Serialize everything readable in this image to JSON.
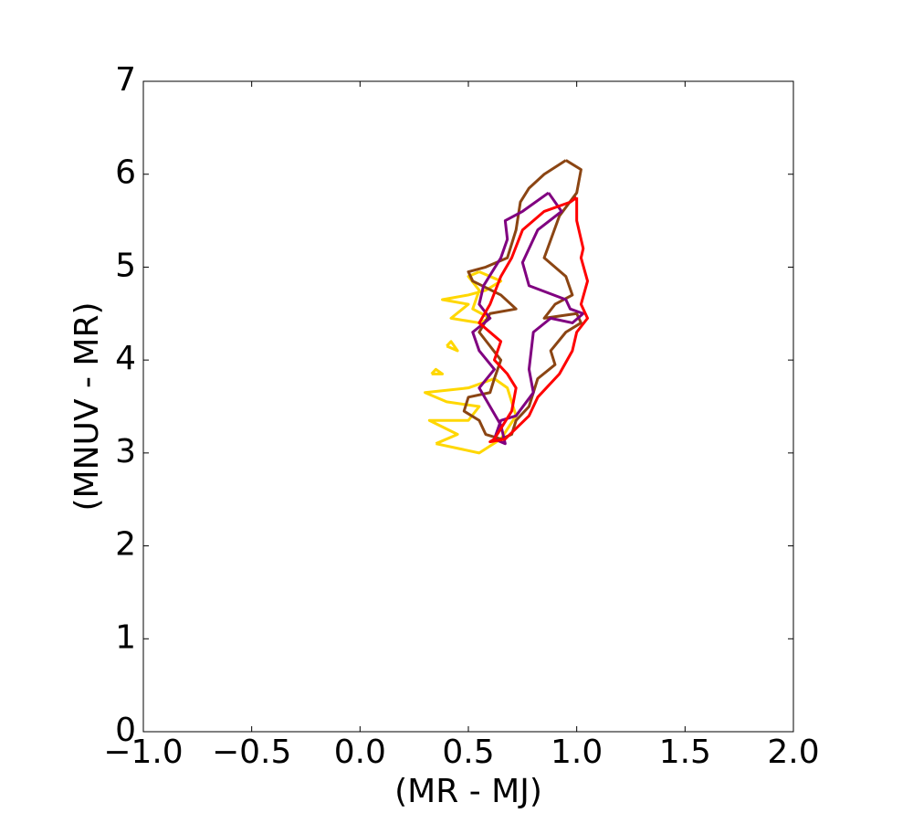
{
  "chart_data": {
    "type": "line",
    "xlabel": "(MR - MJ)",
    "ylabel": "(MNUV - MR)",
    "xlim": [
      -1,
      2
    ],
    "ylim": [
      0,
      7
    ],
    "xticks": [
      {
        "value": -1,
        "label": "−1.0"
      },
      {
        "value": -0.5,
        "label": "−0.5"
      },
      {
        "value": 0,
        "label": "0.0"
      },
      0.5,
      {
        "value": 1,
        "label": "1.0"
      },
      1.5,
      {
        "value": 2,
        "label": "2.0"
      }
    ],
    "yticks": [
      0,
      1,
      2,
      3,
      4,
      5,
      6,
      7
    ],
    "grid": false,
    "series": [
      {
        "color": "#ffd700",
        "x": [
          0.35,
          0.55,
          0.65,
          0.72,
          0.68,
          0.62,
          0.5,
          0.3,
          0.4,
          0.55,
          0.5,
          0.32,
          0.45,
          0.35,
          null,
          0.33,
          0.38,
          0.35,
          0.33,
          null,
          0.4,
          0.45,
          0.42,
          0.4,
          null,
          0.55,
          0.65,
          0.58,
          0.5,
          0.38,
          0.5,
          0.42,
          0.55,
          0.6,
          0.52,
          0.55,
          0.5,
          0.55
        ],
        "y": [
          3.1,
          3.0,
          3.15,
          3.4,
          3.7,
          3.8,
          3.7,
          3.65,
          3.55,
          3.5,
          3.35,
          3.35,
          3.2,
          3.1,
          null,
          3.85,
          3.85,
          3.9,
          3.85,
          null,
          4.15,
          4.1,
          4.2,
          4.15,
          null,
          4.95,
          4.85,
          4.75,
          4.7,
          4.65,
          4.6,
          4.45,
          4.4,
          4.45,
          4.55,
          4.75,
          4.9,
          4.95
        ]
      },
      {
        "color": "#8b4513",
        "x": [
          0.95,
          1.02,
          1.0,
          0.92,
          0.85,
          0.95,
          0.98,
          0.9,
          0.85,
          1.0,
          1.02,
          0.95,
          0.88,
          0.9,
          0.82,
          0.78,
          0.72,
          0.7,
          0.65,
          0.58,
          0.55,
          0.48,
          0.5,
          0.6,
          0.62,
          0.65,
          0.6,
          0.55,
          0.6,
          0.72,
          0.65,
          0.52,
          0.5,
          0.58,
          0.68,
          0.72,
          0.74,
          0.78,
          0.85,
          0.95
        ],
        "y": [
          6.15,
          6.05,
          5.8,
          5.55,
          5.1,
          4.9,
          4.7,
          4.6,
          4.45,
          4.5,
          4.4,
          4.3,
          4.1,
          3.95,
          3.8,
          3.5,
          3.35,
          3.2,
          3.15,
          3.2,
          3.35,
          3.45,
          3.6,
          3.65,
          3.8,
          4.0,
          4.15,
          4.3,
          4.5,
          4.55,
          4.7,
          4.85,
          4.95,
          5.0,
          5.1,
          5.4,
          5.7,
          5.85,
          6.0,
          6.15
        ]
      },
      {
        "color": "#800080",
        "x": [
          0.87,
          0.93,
          0.82,
          0.75,
          0.78,
          0.95,
          0.97,
          1.03,
          0.98,
          0.88,
          0.8,
          0.78,
          0.8,
          0.72,
          0.65,
          0.62,
          0.67,
          0.65,
          0.6,
          0.55,
          0.62,
          0.55,
          0.52,
          0.6,
          0.55,
          0.57,
          0.65,
          0.68,
          0.67,
          0.75,
          0.87
        ],
        "y": [
          5.8,
          5.6,
          5.4,
          5.05,
          4.8,
          4.65,
          4.55,
          4.5,
          4.4,
          4.45,
          4.3,
          3.9,
          3.65,
          3.4,
          3.35,
          3.15,
          3.1,
          3.3,
          3.5,
          3.7,
          3.9,
          4.1,
          4.3,
          4.45,
          4.6,
          4.8,
          5.1,
          5.3,
          5.5,
          5.6,
          5.8
        ]
      },
      {
        "color": "#ff0000",
        "x": [
          1.0,
          0.97,
          0.85,
          0.75,
          0.7,
          0.65,
          0.6,
          0.55,
          0.65,
          0.62,
          0.68,
          0.72,
          0.7,
          0.62,
          0.6,
          0.67,
          0.78,
          0.82,
          0.92,
          0.98,
          1.0,
          1.05,
          1.02,
          1.05,
          1.02,
          1.03,
          1.0,
          1.0
        ],
        "y": [
          5.75,
          5.7,
          5.6,
          5.4,
          5.1,
          4.9,
          4.6,
          4.4,
          4.2,
          4.0,
          3.85,
          3.7,
          3.45,
          3.15,
          3.12,
          3.15,
          3.4,
          3.6,
          3.85,
          4.1,
          4.3,
          4.45,
          4.6,
          4.85,
          5.1,
          5.2,
          5.5,
          5.75
        ]
      }
    ]
  }
}
